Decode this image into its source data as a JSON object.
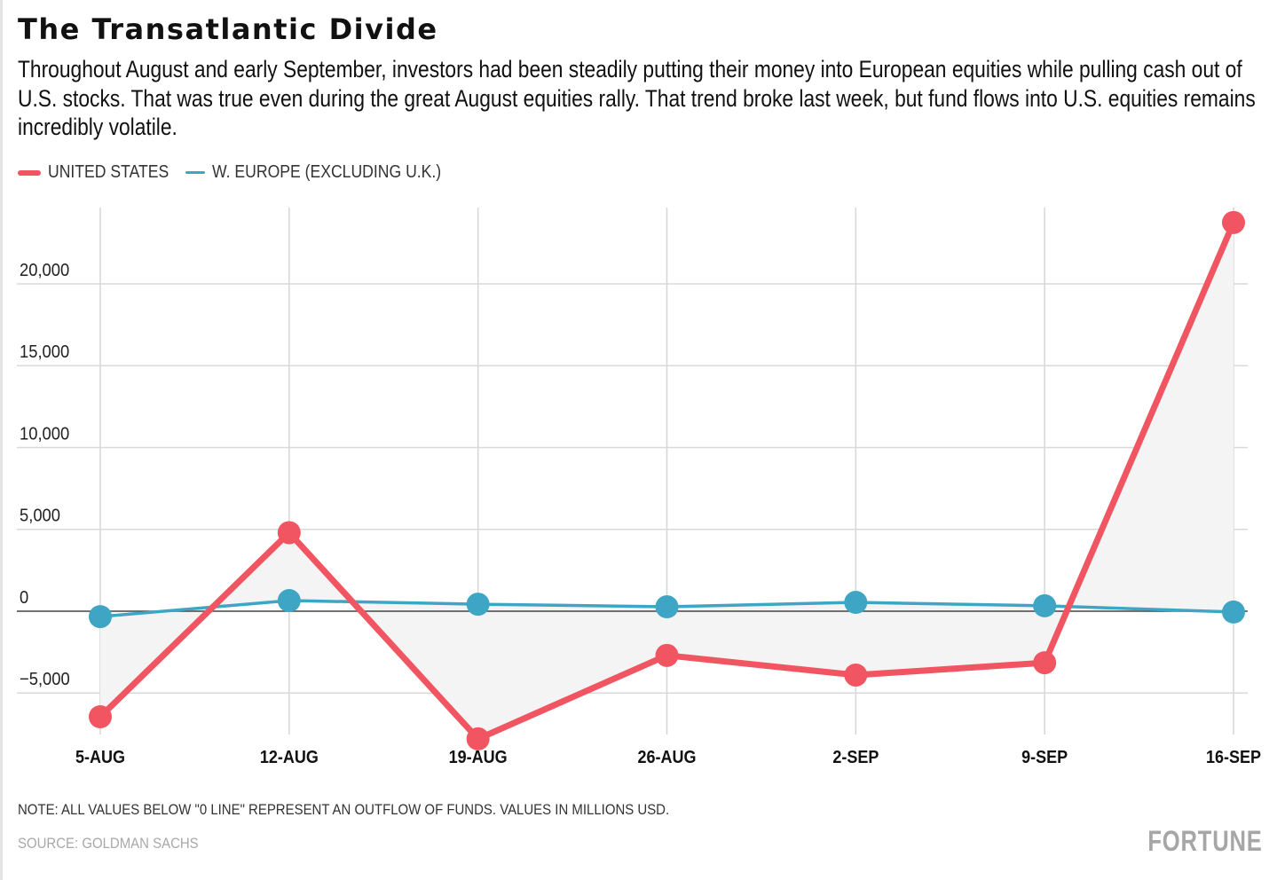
{
  "header": {
    "title": "The Transatlantic Divide",
    "subtitle": "Throughout August and early September, investors had been steadily putting their money into European equities while pulling cash out of U.S. stocks. That was true even during the great August equities rally. That trend broke last week, but fund flows into U.S. equities remains incredibly volatile."
  },
  "legend": [
    {
      "label": "UNITED STATES",
      "color": "#f05561"
    },
    {
      "label": "W. EUROPE (EXCLUDING U.K.)",
      "color": "#3ea6c4"
    }
  ],
  "footer": {
    "note": "NOTE: ALL VALUES BELOW \"0 LINE\" REPRESENT AN OUTFLOW OF FUNDS. VALUES IN MILLIONS USD.",
    "source": "SOURCE: GOLDMAN SACHS",
    "logo": "FORTUNE"
  },
  "chart_data": {
    "type": "line",
    "title": "The Transatlantic Divide",
    "xlabel": "",
    "ylabel": "",
    "categories": [
      "5-AUG",
      "12-AUG",
      "19-AUG",
      "26-AUG",
      "2-SEP",
      "9-SEP",
      "16-SEP"
    ],
    "series": [
      {
        "name": "UNITED STATES",
        "color": "#f05561",
        "values": [
          -6450,
          4800,
          -7800,
          -2700,
          -3900,
          -3150,
          23750
        ]
      },
      {
        "name": "W. EUROPE (EXCLUDING U.K.)",
        "color": "#3ea6c4",
        "values": [
          -330,
          650,
          430,
          270,
          540,
          330,
          -50
        ]
      }
    ],
    "yticks": [
      -5000,
      0,
      5000,
      10000,
      15000,
      20000
    ],
    "ytick_labels": [
      "−5,000",
      "0",
      "5,000",
      "10,000",
      "15,000",
      "20,000"
    ],
    "ylim": [
      -8700,
      24700
    ],
    "grid": true,
    "fill_between_series": true,
    "zero_line": true,
    "legend_position": "top-left",
    "units": "millions USD"
  }
}
